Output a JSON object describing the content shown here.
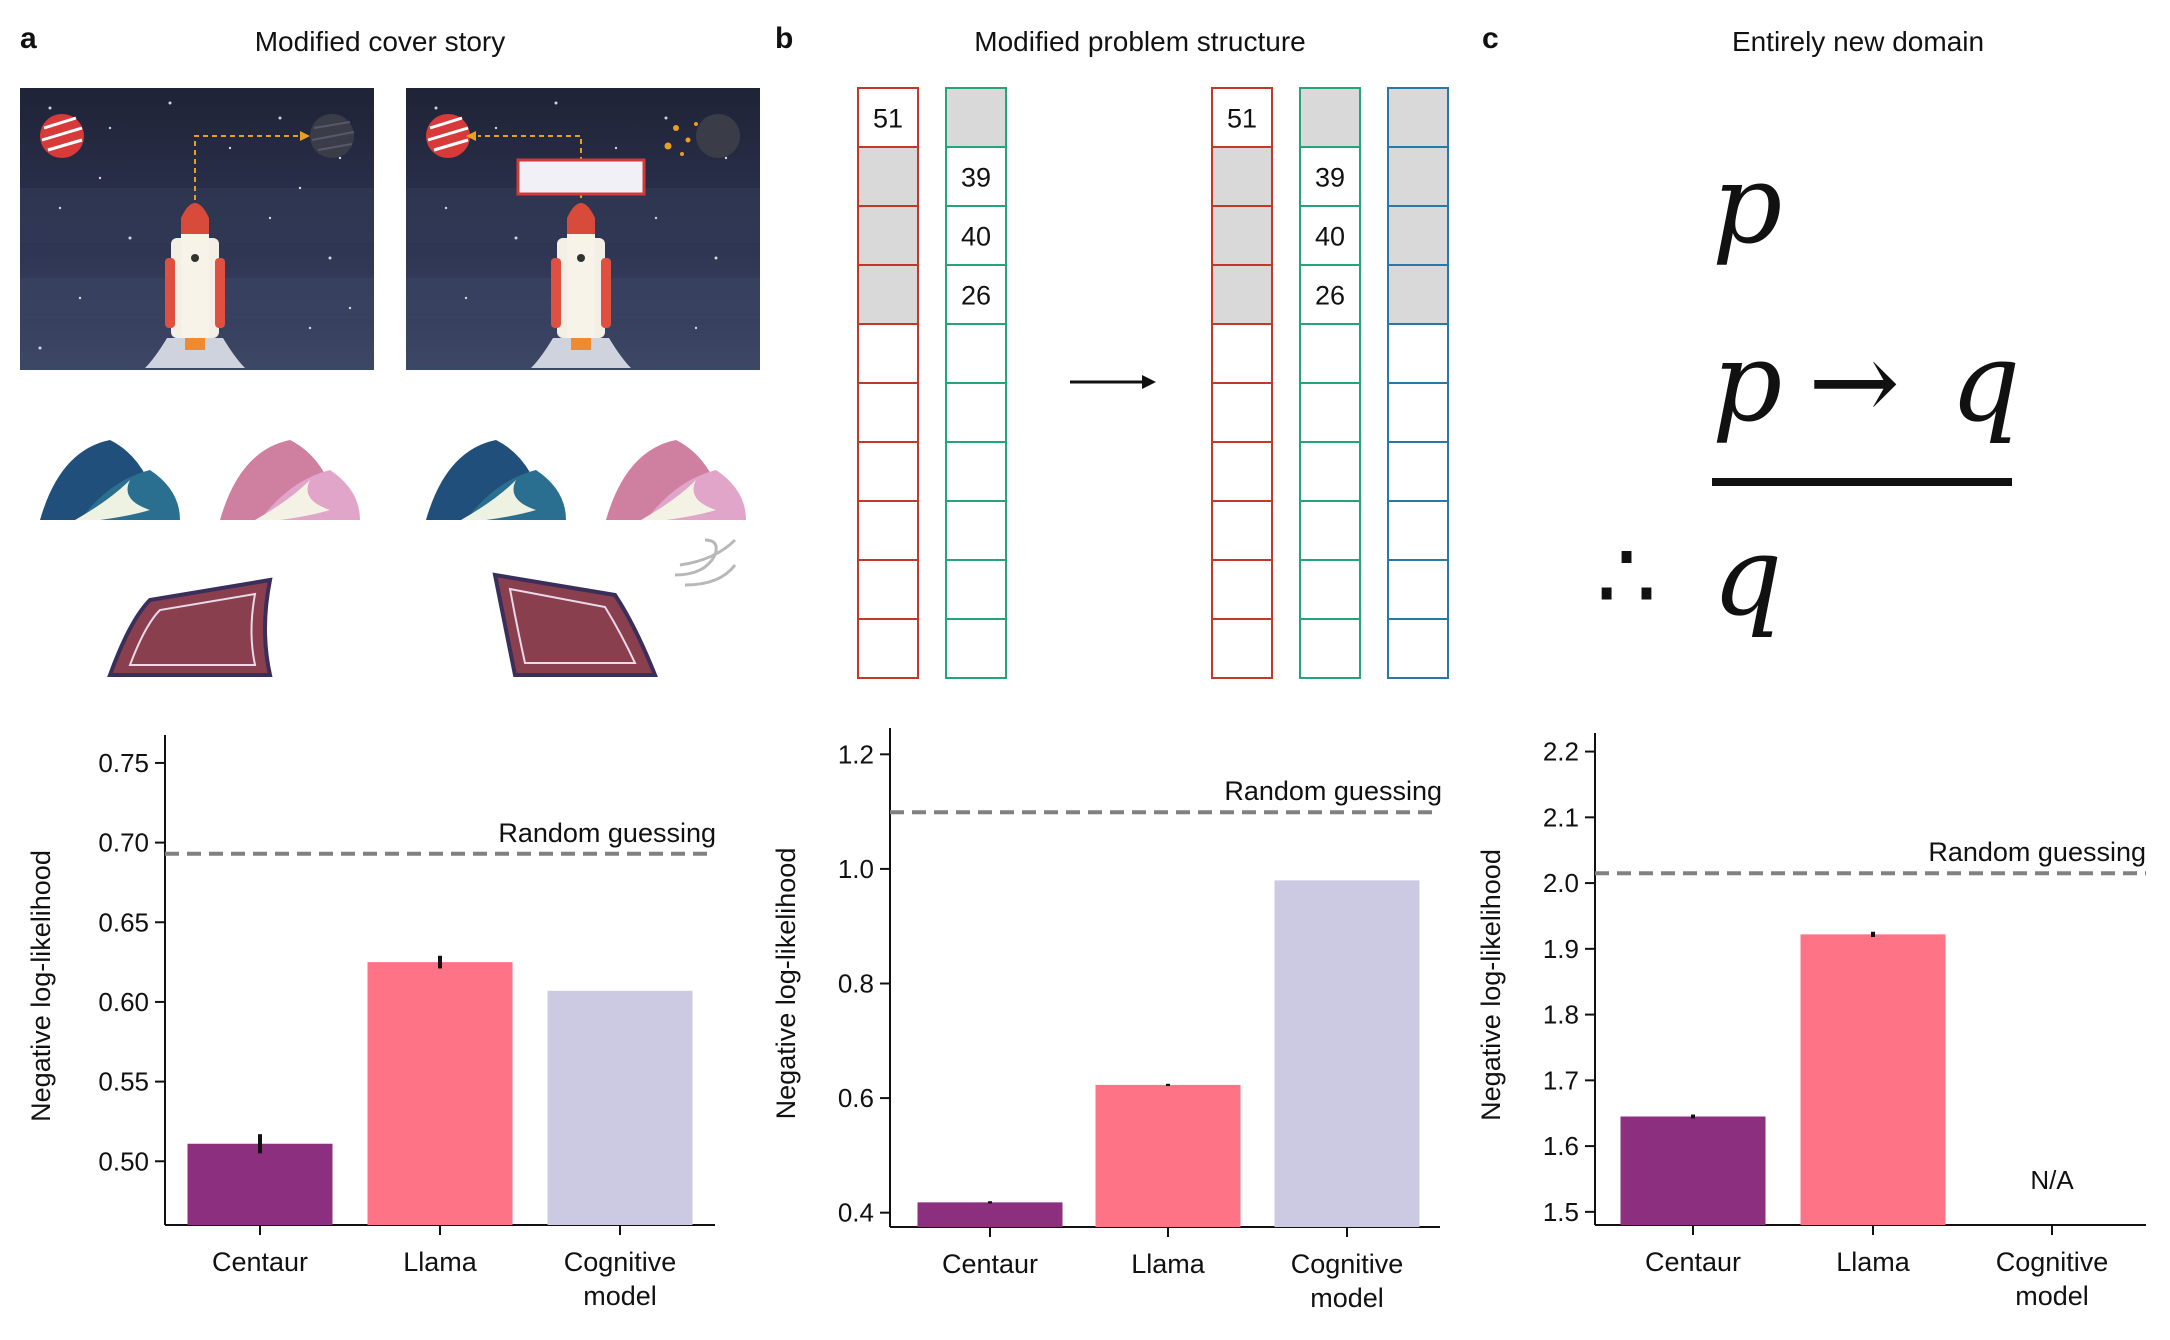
{
  "panels": [
    {
      "letter": "a",
      "title": "Modified cover story"
    },
    {
      "letter": "b",
      "title": "Modified problem structure"
    },
    {
      "letter": "c",
      "title": "Entirely new domain"
    }
  ],
  "grid_b": {
    "left_red_numbers": [
      "51"
    ],
    "left_green_numbers": [
      "39",
      "40",
      "26"
    ],
    "right_red_numbers": [
      "51"
    ],
    "right_green_numbers": [
      "39",
      "40",
      "26"
    ],
    "colors": {
      "red": "#c0392b",
      "green": "#27a37a",
      "blue": "#2878a8",
      "grey": "#d9d9d9"
    }
  },
  "logic_c": {
    "premise1": "p",
    "premise2_left": "p",
    "arrow": "→",
    "premise2_right": "q",
    "therefore": "∴",
    "conclusion": "q"
  },
  "chart_data": [
    {
      "type": "bar",
      "categories": [
        "Centaur",
        "Llama",
        "Cognitive model"
      ],
      "category_lines": [
        [
          "Centaur"
        ],
        [
          "Llama"
        ],
        [
          "Cognitive",
          "model"
        ]
      ],
      "values": [
        0.511,
        0.625,
        0.607
      ],
      "errors": [
        0.006,
        0.004,
        0
      ],
      "colors": [
        "#8b2f7e",
        "#ff7386",
        "#ccc9e3"
      ],
      "ylabel": "Negative log-likelihood",
      "ylim": [
        0.46,
        0.76
      ],
      "yticks": [
        0.5,
        0.55,
        0.6,
        0.65,
        0.7,
        0.75
      ],
      "tick_labels": [
        "0.50",
        "0.55",
        "0.60",
        "0.65",
        "0.70",
        "0.75"
      ],
      "reference_line": {
        "value": 0.693,
        "label": "Random guessing"
      }
    },
    {
      "type": "bar",
      "categories": [
        "Centaur",
        "Llama",
        "Cognitive model"
      ],
      "category_lines": [
        [
          "Centaur"
        ],
        [
          "Llama"
        ],
        [
          "Cognitive",
          "model"
        ]
      ],
      "values": [
        0.418,
        0.623,
        0.98
      ],
      "errors": [
        0.002,
        0.002,
        0
      ],
      "colors": [
        "#8b2f7e",
        "#ff7386",
        "#ccc9e3"
      ],
      "ylabel": "Negative log-likelihood",
      "ylim": [
        0.375,
        1.225
      ],
      "yticks": [
        0.4,
        0.6,
        0.8,
        1.0,
        1.2
      ],
      "tick_labels": [
        "0.4",
        "0.6",
        "0.8",
        "1.0",
        "1.2"
      ],
      "reference_line": {
        "value": 1.099,
        "label": "Random guessing"
      }
    },
    {
      "type": "bar",
      "categories": [
        "Centaur",
        "Llama",
        "Cognitive model"
      ],
      "category_lines": [
        [
          "Centaur"
        ],
        [
          "Llama"
        ],
        [
          "Cognitive",
          "model"
        ]
      ],
      "values": [
        1.645,
        1.922,
        null
      ],
      "errors": [
        0.003,
        0.004,
        0
      ],
      "colors": [
        "#8b2f7e",
        "#ff7386",
        "#ccc9e3"
      ],
      "na_label": "N/A",
      "ylabel": "Negative log-likelihood",
      "ylim": [
        1.48,
        2.21
      ],
      "yticks": [
        1.5,
        1.6,
        1.7,
        1.8,
        1.9,
        2.0,
        2.1,
        2.2
      ],
      "tick_labels": [
        "1.5",
        "1.6",
        "1.7",
        "1.8",
        "1.9",
        "2.0",
        "2.1",
        "2.2"
      ],
      "reference_line": {
        "value": 2.015,
        "label": "Random guessing"
      }
    }
  ]
}
